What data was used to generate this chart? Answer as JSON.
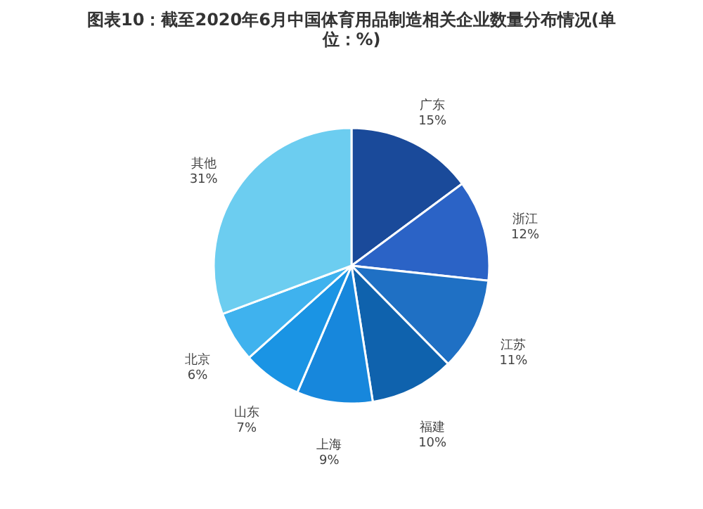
{
  "chart_data": {
    "type": "pie",
    "title": [
      "图表10：截至2020年6月中国体育用品制造相关企业数量分布情况(单",
      "位：%)"
    ],
    "categories": [
      "广东",
      "浙江",
      "江苏",
      "福建",
      "上海",
      "山东",
      "北京",
      "其他"
    ],
    "values": [
      15,
      12,
      11,
      10,
      9,
      7,
      6,
      31
    ],
    "colors": [
      "#1a4a9a",
      "#2b63c6",
      "#1f70c4",
      "#0f62ad",
      "#1787dc",
      "#1a94e4",
      "#3fb2ee",
      "#6ccdf0"
    ],
    "data_labels": true,
    "value_labels": [
      "15%",
      "12%",
      "11%",
      "10%",
      "9%",
      "7%",
      "6%",
      "31%"
    ],
    "legend": false
  }
}
